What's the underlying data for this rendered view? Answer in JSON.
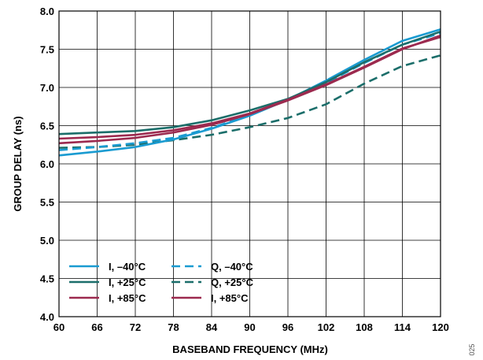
{
  "chart_data": {
    "type": "line",
    "xlabel": "BASEBAND FREQUENCY (MHz)",
    "ylabel": "GROUP DELAY (ns)",
    "xlim": [
      60,
      120
    ],
    "ylim": [
      4.0,
      8.0
    ],
    "x_ticks": [
      "60",
      "66",
      "72",
      "78",
      "84",
      "90",
      "96",
      "102",
      "108",
      "114",
      "120"
    ],
    "y_ticks": [
      "4.0",
      "4.5",
      "5.0",
      "5.5",
      "6.0",
      "6.5",
      "7.0",
      "7.5",
      "8.0"
    ],
    "grid": true,
    "legend_position": "bottom-left",
    "x": [
      60,
      66,
      72,
      78,
      84,
      90,
      96,
      102,
      108,
      114,
      120
    ],
    "series": [
      {
        "name": "I, –40°C",
        "color": "#1a9bd1",
        "dash": "solid",
        "values": [
          6.11,
          6.16,
          6.22,
          6.32,
          6.46,
          6.63,
          6.84,
          7.09,
          7.36,
          7.61,
          7.76
        ]
      },
      {
        "name": "I, +25°C",
        "color": "#1b6e6a",
        "dash": "solid",
        "values": [
          6.39,
          6.41,
          6.43,
          6.48,
          6.57,
          6.7,
          6.85,
          7.07,
          7.33,
          7.56,
          7.73
        ]
      },
      {
        "name": "I, +85°C",
        "color": "#9c2a4f",
        "dash": "solid",
        "values": [
          6.33,
          6.35,
          6.38,
          6.44,
          6.53,
          6.66,
          6.84,
          7.04,
          7.27,
          7.51,
          7.66
        ]
      },
      {
        "name": "Q, –40°C",
        "color": "#1a9bd1",
        "dash": "dashed",
        "values": [
          6.18,
          6.22,
          6.27,
          6.34,
          6.47,
          6.64,
          6.84,
          7.06,
          7.32,
          7.56,
          7.71
        ]
      },
      {
        "name": "Q, +25°C",
        "color": "#1b6e6a",
        "dash": "dashed",
        "values": [
          6.21,
          6.22,
          6.25,
          6.31,
          6.38,
          6.48,
          6.6,
          6.78,
          7.05,
          7.28,
          7.42
        ]
      },
      {
        "name": "I, +85°C",
        "color": "#9c2a4f",
        "dash": "solid",
        "values": [
          6.27,
          6.3,
          6.34,
          6.41,
          6.51,
          6.65,
          6.83,
          7.03,
          7.26,
          7.5,
          7.68
        ]
      }
    ]
  },
  "figure_id": "025"
}
